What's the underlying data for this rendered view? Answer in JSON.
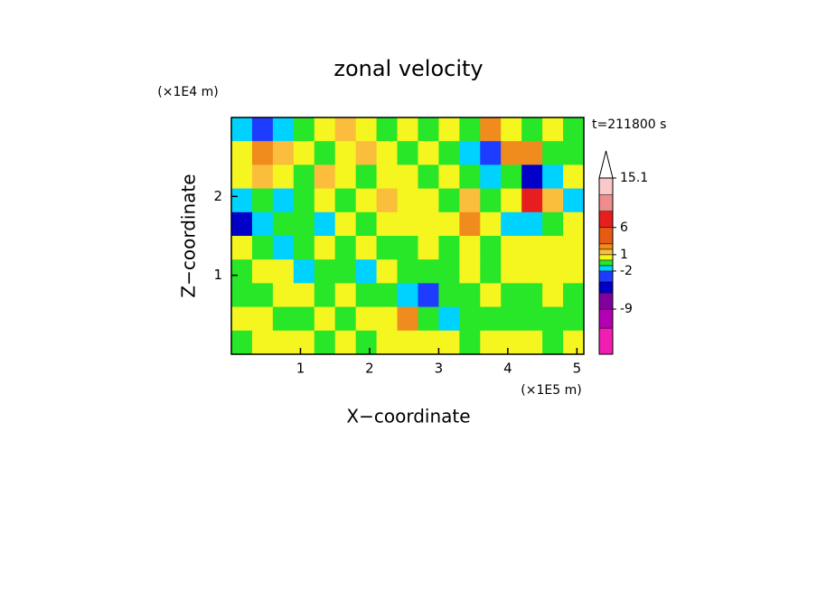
{
  "chart_data": {
    "type": "contour",
    "title": "zonal velocity",
    "x_label": "X−coordinate",
    "y_label": "Z−coordinate",
    "x_unit": "(×1E5 m)",
    "y_unit": "(×1E4 m)",
    "annotation": "t=211800 s",
    "xlim": [
      0,
      5.1
    ],
    "ylim": [
      0,
      3
    ],
    "xticks": [
      1,
      2,
      3,
      4,
      5
    ],
    "yticks": [
      1,
      2
    ],
    "x": [
      0.15,
      0.45,
      0.75,
      1.05,
      1.35,
      1.65,
      1.95,
      2.25,
      2.55,
      2.85,
      3.15,
      3.45,
      3.75,
      4.05,
      4.35,
      4.65,
      4.95
    ],
    "y": [
      2.85,
      2.55,
      2.25,
      1.95,
      1.65,
      1.35,
      1.05,
      0.75,
      0.45,
      0.15
    ],
    "z": [
      [
        -1.5,
        -3,
        -1.5,
        -0.5,
        0.5,
        1.5,
        0.5,
        -0.5,
        0.5,
        -0.5,
        0.5,
        -0.5,
        2.5,
        0.5,
        -0.5,
        0.5,
        -0.5
      ],
      [
        0.5,
        2.5,
        1.5,
        0.5,
        -0.5,
        0.5,
        1.5,
        0.5,
        -0.5,
        0.5,
        -0.5,
        -1.5,
        -3,
        2.5,
        2.5,
        -0.5,
        -0.5
      ],
      [
        0.5,
        1.5,
        0.5,
        -0.5,
        1.5,
        0.5,
        -0.5,
        0.5,
        0.5,
        -0.5,
        0.5,
        -0.5,
        -1.5,
        -0.5,
        -5,
        -1.5,
        0.5
      ],
      [
        -1.5,
        -0.5,
        -1.5,
        -0.5,
        0.5,
        -0.5,
        0.5,
        1.5,
        0.5,
        0.5,
        -0.5,
        1.5,
        -0.5,
        0.5,
        7,
        1.5,
        -1.5
      ],
      [
        -5,
        -1.5,
        -0.5,
        -0.5,
        -1.5,
        0.5,
        -0.5,
        0.5,
        0.5,
        0.5,
        0.5,
        2.5,
        0.5,
        -1.5,
        -1.5,
        -0.5,
        0.5
      ],
      [
        0.5,
        -0.5,
        -1.5,
        -0.5,
        0.5,
        -0.5,
        0.5,
        -0.5,
        -0.5,
        0.5,
        -0.5,
        0.5,
        -0.5,
        0.5,
        0.5,
        0.5,
        0.5
      ],
      [
        -0.5,
        0.5,
        0.5,
        -1.5,
        -0.5,
        -0.5,
        -1.5,
        0.5,
        -0.5,
        -0.5,
        -0.5,
        0.5,
        -0.5,
        0.5,
        0.5,
        0.5,
        0.5
      ],
      [
        -0.5,
        -0.5,
        0.5,
        0.5,
        -0.5,
        0.5,
        -0.5,
        -0.5,
        -1.5,
        -3,
        -0.5,
        -0.5,
        0.5,
        -0.5,
        -0.5,
        0.5,
        -0.5
      ],
      [
        0.5,
        0.5,
        -0.5,
        -0.5,
        0.5,
        -0.5,
        0.5,
        0.5,
        2.5,
        -0.5,
        -1.5,
        -0.5,
        -0.5,
        -0.5,
        -0.5,
        -0.5,
        -0.5
      ],
      [
        -0.5,
        0.5,
        0.5,
        0.5,
        -0.5,
        0.5,
        -0.5,
        0.5,
        0.5,
        0.5,
        0.5,
        -0.5,
        0.5,
        0.5,
        0.5,
        -0.5,
        0.5
      ]
    ],
    "colorbar": {
      "lim": [
        -17.3,
        15.1
      ],
      "levels": [
        -17.3,
        -12.5,
        -9,
        -6,
        -4,
        -2,
        -1,
        0,
        1,
        2,
        3,
        6,
        9,
        12,
        15.1
      ],
      "colors": [
        "#f01eb4",
        "#b400b4",
        "#8200a0",
        "#0000c8",
        "#1e3cff",
        "#00d2ff",
        "#28e628",
        "#f5f520",
        "#fabe3c",
        "#f08c1e",
        "#e65a14",
        "#e61e1e",
        "#f08c8c",
        "#fac8c8"
      ],
      "ticks": [
        15.1,
        6,
        1,
        -2,
        -9
      ]
    }
  }
}
